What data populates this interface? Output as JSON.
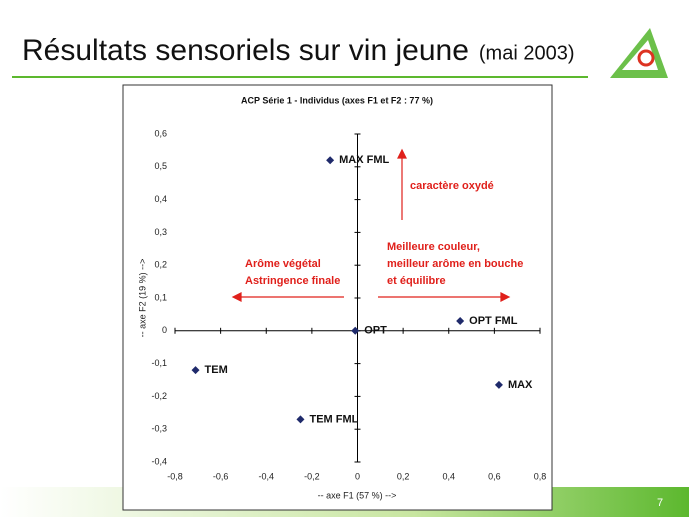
{
  "slide": {
    "title": "Résultats sensoriels sur vin jeune",
    "subtitle": "(mai 2003)",
    "page_number": 7
  },
  "chart_data": {
    "type": "scatter",
    "title": "ACP Série 1 - Individus (axes F1 et F2 : 77 %)",
    "x_label": "-- axe F1 (57 %) -->",
    "y_label": "-- axe F2 (19 %) -->",
    "point_labels": [
      "MAX FML",
      "OPT",
      "OPT FML",
      "TEM",
      "MAX",
      "TEM FML"
    ],
    "x": [
      -0.12,
      -0.01,
      0.45,
      -0.71,
      0.62,
      -0.25
    ],
    "values": [
      0.52,
      0.0,
      0.03,
      -0.12,
      -0.165,
      -0.27
    ],
    "color": "#1f2a6b",
    "xlim": [
      -0.8,
      0.8
    ],
    "xticks": [
      {
        "value": -0.8,
        "label": "-0,8"
      },
      {
        "value": -0.6,
        "label": "-0,6"
      },
      {
        "value": -0.4,
        "label": "-0,4"
      },
      {
        "value": -0.2,
        "label": "-0,2"
      },
      0,
      {
        "value": 0.2,
        "label": "0,2"
      },
      {
        "value": 0.4,
        "label": "0,4"
      },
      {
        "value": 0.6,
        "label": "0,6"
      },
      {
        "value": 0.8,
        "label": "0,8"
      }
    ],
    "ylim": [
      -0.4,
      0.6
    ],
    "yticks": [
      {
        "value": -0.4,
        "label": "-0,4"
      },
      {
        "value": -0.3,
        "label": "-0,3"
      },
      {
        "value": -0.2,
        "label": "-0,2"
      },
      {
        "value": -0.1,
        "label": "-0,1"
      },
      0,
      {
        "value": 0.1,
        "label": "0,1"
      },
      {
        "value": 0.2,
        "label": "0,2"
      },
      {
        "value": 0.3,
        "label": "0,3"
      },
      {
        "value": 0.4,
        "label": "0,4"
      },
      {
        "value": 0.5,
        "label": "0,5"
      },
      {
        "value": 0.6,
        "label": "0,6"
      }
    ],
    "annotations": [
      [
        "caractère oxydé"
      ],
      [
        "Arôme végétal",
        "Astringence finale"
      ],
      [
        "Meilleure couleur,",
        "meilleur arôme en bouche",
        "et équilibre"
      ]
    ],
    "annotation_color": "#e0201b"
  }
}
